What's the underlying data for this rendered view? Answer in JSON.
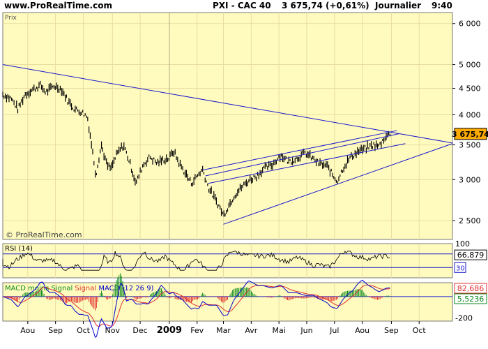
{
  "header": {
    "website": "www.ProRealTime.com",
    "instrument": "PXI - CAC 40",
    "quote": "3 675,74 (+0,61%)",
    "period": "Journalier",
    "time": "9:40"
  },
  "chart_data": [
    {
      "type": "line",
      "title": "Prix",
      "watermark": "© ProRealTime.com",
      "y_scale": "log",
      "ylim": [
        2300,
        6300
      ],
      "y_ticks": [
        {
          "value": 2500,
          "label": "2 500"
        },
        {
          "value": 3000,
          "label": "3 000"
        },
        {
          "value": 3500,
          "label": "3 500"
        },
        {
          "value": 4000,
          "label": "4 000"
        },
        {
          "value": 4500,
          "label": "4 500"
        },
        {
          "value": 5000,
          "label": "5 000"
        },
        {
          "value": 6000,
          "label": "6 000"
        }
      ],
      "x_ticks": [
        {
          "t": 0.9,
          "label": "Aou"
        },
        {
          "t": 1.9,
          "label": "Sep"
        },
        {
          "t": 2.9,
          "label": "Oct"
        },
        {
          "t": 3.95,
          "label": "Nov"
        },
        {
          "t": 4.95,
          "label": "Dec"
        },
        {
          "t": 6.0,
          "label": "2009"
        },
        {
          "t": 7.0,
          "label": "Fev"
        },
        {
          "t": 7.95,
          "label": "Mar"
        },
        {
          "t": 8.95,
          "label": "Avr"
        },
        {
          "t": 9.95,
          "label": "Mai"
        },
        {
          "t": 10.95,
          "label": "Jun"
        },
        {
          "t": 11.95,
          "label": "Jul"
        },
        {
          "t": 12.95,
          "label": "Aou"
        },
        {
          "t": 14.0,
          "label": "Sep"
        },
        {
          "t": 15.0,
          "label": "Oct"
        }
      ],
      "xlim": [
        0,
        16.2
      ],
      "series": [
        {
          "values": [
            [
              0,
              4380
            ],
            [
              0.3,
              4300
            ],
            [
              0.55,
              4100
            ],
            [
              0.8,
              4380
            ],
            [
              1.1,
              4480
            ],
            [
              1.35,
              4560
            ],
            [
              1.55,
              4420
            ],
            [
              1.85,
              4550
            ],
            [
              2.1,
              4490
            ],
            [
              2.35,
              4250
            ],
            [
              2.6,
              4100
            ],
            [
              2.85,
              4050
            ],
            [
              3.05,
              3960
            ],
            [
              3.2,
              3500
            ],
            [
              3.35,
              3050
            ],
            [
              3.55,
              3500
            ],
            [
              3.75,
              3200
            ],
            [
              3.9,
              3150
            ],
            [
              4.1,
              3350
            ],
            [
              4.35,
              3500
            ],
            [
              4.6,
              3200
            ],
            [
              4.8,
              2950
            ],
            [
              5.05,
              3200
            ],
            [
              5.3,
              3320
            ],
            [
              5.55,
              3230
            ],
            [
              5.8,
              3280
            ],
            [
              6.0,
              3300
            ],
            [
              6.15,
              3410
            ],
            [
              6.35,
              3230
            ],
            [
              6.55,
              3100
            ],
            [
              6.8,
              2950
            ],
            [
              7.0,
              3050
            ],
            [
              7.2,
              3140
            ],
            [
              7.4,
              2900
            ],
            [
              7.6,
              2780
            ],
            [
              7.8,
              2660
            ],
            [
              7.95,
              2560
            ],
            [
              8.1,
              2650
            ],
            [
              8.35,
              2800
            ],
            [
              8.6,
              2900
            ],
            [
              8.9,
              3000
            ],
            [
              9.15,
              3050
            ],
            [
              9.4,
              3150
            ],
            [
              9.7,
              3200
            ],
            [
              10.0,
              3350
            ],
            [
              10.3,
              3250
            ],
            [
              10.6,
              3300
            ],
            [
              10.9,
              3380
            ],
            [
              11.15,
              3300
            ],
            [
              11.4,
              3220
            ],
            [
              11.7,
              3180
            ],
            [
              11.9,
              3050
            ],
            [
              12.05,
              2980
            ],
            [
              12.25,
              3150
            ],
            [
              12.5,
              3300
            ],
            [
              12.8,
              3400
            ],
            [
              13.1,
              3450
            ],
            [
              13.35,
              3500
            ],
            [
              13.55,
              3480
            ],
            [
              13.8,
              3640
            ],
            [
              13.95,
              3675.74
            ]
          ]
        }
      ],
      "trendlines": [
        {
          "from": [
            0,
            5000
          ],
          "to": [
            16.2,
            3530
          ]
        },
        {
          "from": [
            7.95,
            2460
          ],
          "to": [
            16.2,
            3520
          ]
        },
        {
          "from": [
            7.2,
            3130
          ],
          "to": [
            14.2,
            3730
          ]
        },
        {
          "from": [
            7.4,
            2950
          ],
          "to": [
            14.5,
            3520
          ]
        },
        {
          "from": [
            7.3,
            3050
          ],
          "to": [
            14.3,
            3680
          ]
        }
      ],
      "last_value_label": "3 675,74",
      "last_value": 3675.74
    },
    {
      "type": "line",
      "title": "RSI (14)",
      "ylim": [
        0,
        100
      ],
      "y_ticks": [
        {
          "value": 100,
          "label": "100"
        }
      ],
      "levels": [
        70,
        30
      ],
      "last_value_label": "66,879",
      "lower_label": "30"
    },
    {
      "type": "line",
      "title_parts": [
        {
          "text": "MACD moins Signal",
          "color": "#0a8a1a"
        },
        {
          "text": "Signal",
          "color": "#e03030"
        },
        {
          "text": "MACD (12 26 9)",
          "color": "#0000cc"
        }
      ],
      "ylim": [
        -230,
        130
      ],
      "y_ticks": [
        {
          "value": -200,
          "label": "-200"
        }
      ],
      "value_labels": [
        {
          "label": "82,686",
          "color": "#e03030"
        },
        {
          "label": "5,5236",
          "color": "#0a8a1a"
        }
      ]
    }
  ]
}
